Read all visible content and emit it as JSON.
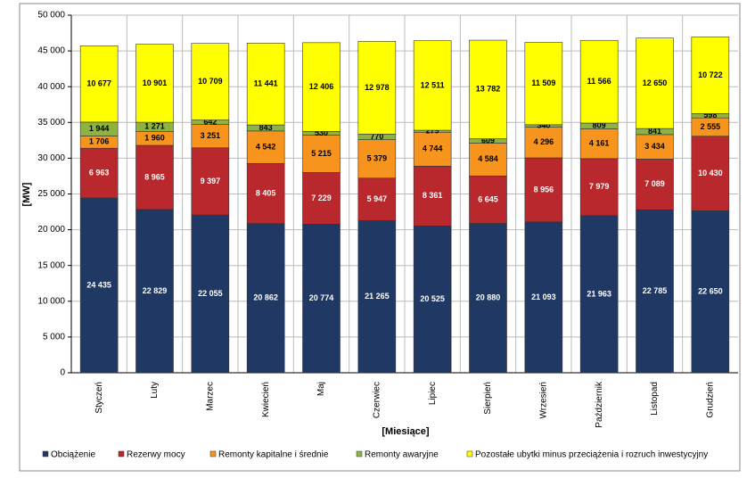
{
  "chart_data": {
    "type": "stacked_bar",
    "y_label": "[MW]",
    "x_label": "[Miesiące]",
    "categories": [
      "Styczeń",
      "Luty",
      "Marzec",
      "Kwiecień",
      "Maj",
      "Czerwiec",
      "Lipiec",
      "Sierpień",
      "Wrzesień",
      "Październik",
      "Listopad",
      "Grudzień"
    ],
    "ylim": [
      0,
      50000
    ],
    "yticks": [
      0,
      {
        "value": 5000,
        "label": "5 000"
      },
      {
        "value": 10000,
        "label": "10 000"
      },
      {
        "value": 15000,
        "label": "15 000"
      },
      {
        "value": 20000,
        "label": "20 000"
      },
      {
        "value": 25000,
        "label": "25 000"
      },
      {
        "value": 30000,
        "label": "30 000"
      },
      {
        "value": 35000,
        "label": "35 000"
      },
      {
        "value": 40000,
        "label": "40 000"
      },
      {
        "value": 45000,
        "label": "45 000"
      },
      {
        "value": 50000,
        "label": "50 000"
      }
    ],
    "grid": true,
    "legend": "bottom",
    "series": [
      {
        "name": "Obciążenie",
        "color": "#1f3864",
        "label_color": "#ffffff",
        "values": [
          24435,
          22829,
          22055,
          20862,
          20774,
          21265,
          20525,
          20880,
          21093,
          21963,
          22785,
          22650
        ],
        "value_labels": [
          "24 435",
          "22 829",
          "22 055",
          "20 862",
          "20 774",
          "21 265",
          "20 525",
          "20 880",
          "21 093",
          "21 963",
          "22 785",
          "22 650"
        ]
      },
      {
        "name": "Rezerwy mocy",
        "color": "#b8282c",
        "label_color": "#ffffff",
        "values": [
          6963,
          8965,
          9397,
          8405,
          7229,
          5947,
          8361,
          6645,
          8956,
          7979,
          7089,
          10430
        ],
        "value_labels": [
          "6 963",
          "8 965",
          "9 397",
          "8 405",
          "7 229",
          "5 947",
          "8 361",
          "6 645",
          "8 956",
          "7 979",
          "7 089",
          "10 430"
        ]
      },
      {
        "name": "Remonty kapitalne i średnie",
        "color": "#f7941d",
        "label_color": "#000000",
        "values": [
          1706,
          1960,
          3251,
          4542,
          5215,
          5379,
          4744,
          4584,
          4296,
          4161,
          3434,
          2555
        ],
        "value_labels": [
          "1 706",
          "1 960",
          "3 251",
          "4 542",
          "5 215",
          "5 379",
          "4 744",
          "4 584",
          "4 296",
          "4 161",
          "3 434",
          "2 555"
        ]
      },
      {
        "name": "Remonty awaryjne",
        "color": "#8db43e",
        "label_color": "#000000",
        "values": [
          1944,
          1271,
          642,
          843,
          530,
          770,
          279,
          609,
          340,
          809,
          841,
          598
        ],
        "value_labels": [
          "1 944",
          "1 271",
          "642",
          "843",
          "530",
          "770",
          "279",
          "609",
          "340",
          "809",
          "841",
          "598"
        ]
      },
      {
        "name": "Pozostałe ubytki minus przeciążenia i rozruch inwestycyjny",
        "color": "#ffff00",
        "label_color": "#000000",
        "values": [
          10677,
          10901,
          10709,
          11441,
          12406,
          12978,
          12511,
          13782,
          11509,
          11566,
          12650,
          10722
        ],
        "value_labels": [
          "10 677",
          "10 901",
          "10 709",
          "11 441",
          "12 406",
          "12 978",
          "12 511",
          "13 782",
          "11 509",
          "11 566",
          "12 650",
          "10 722"
        ]
      }
    ]
  }
}
